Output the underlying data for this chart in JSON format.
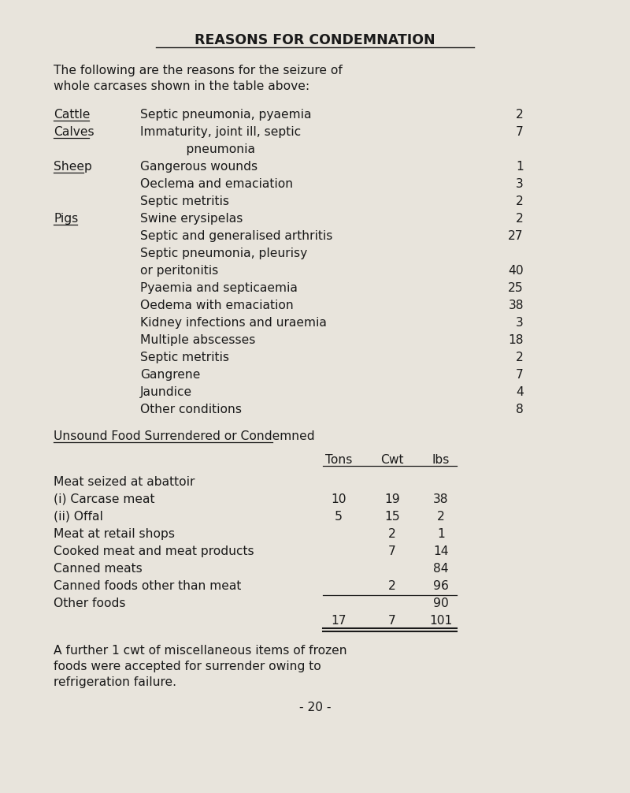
{
  "bg_color": "#e8e4dc",
  "title": "REASONS FOR CONDEMNATION",
  "font_family": "Courier New",
  "title_fontsize": 12.5,
  "body_fontsize": 11.2,
  "small_fontsize": 11.0,
  "text_color": "#1a1a1a",
  "page_number": "- 20 -",
  "footnote": "A further 1 cwt of miscellaneous items of frozen\nfoods were accepted for surrender owing to\nrefrigeration failure."
}
